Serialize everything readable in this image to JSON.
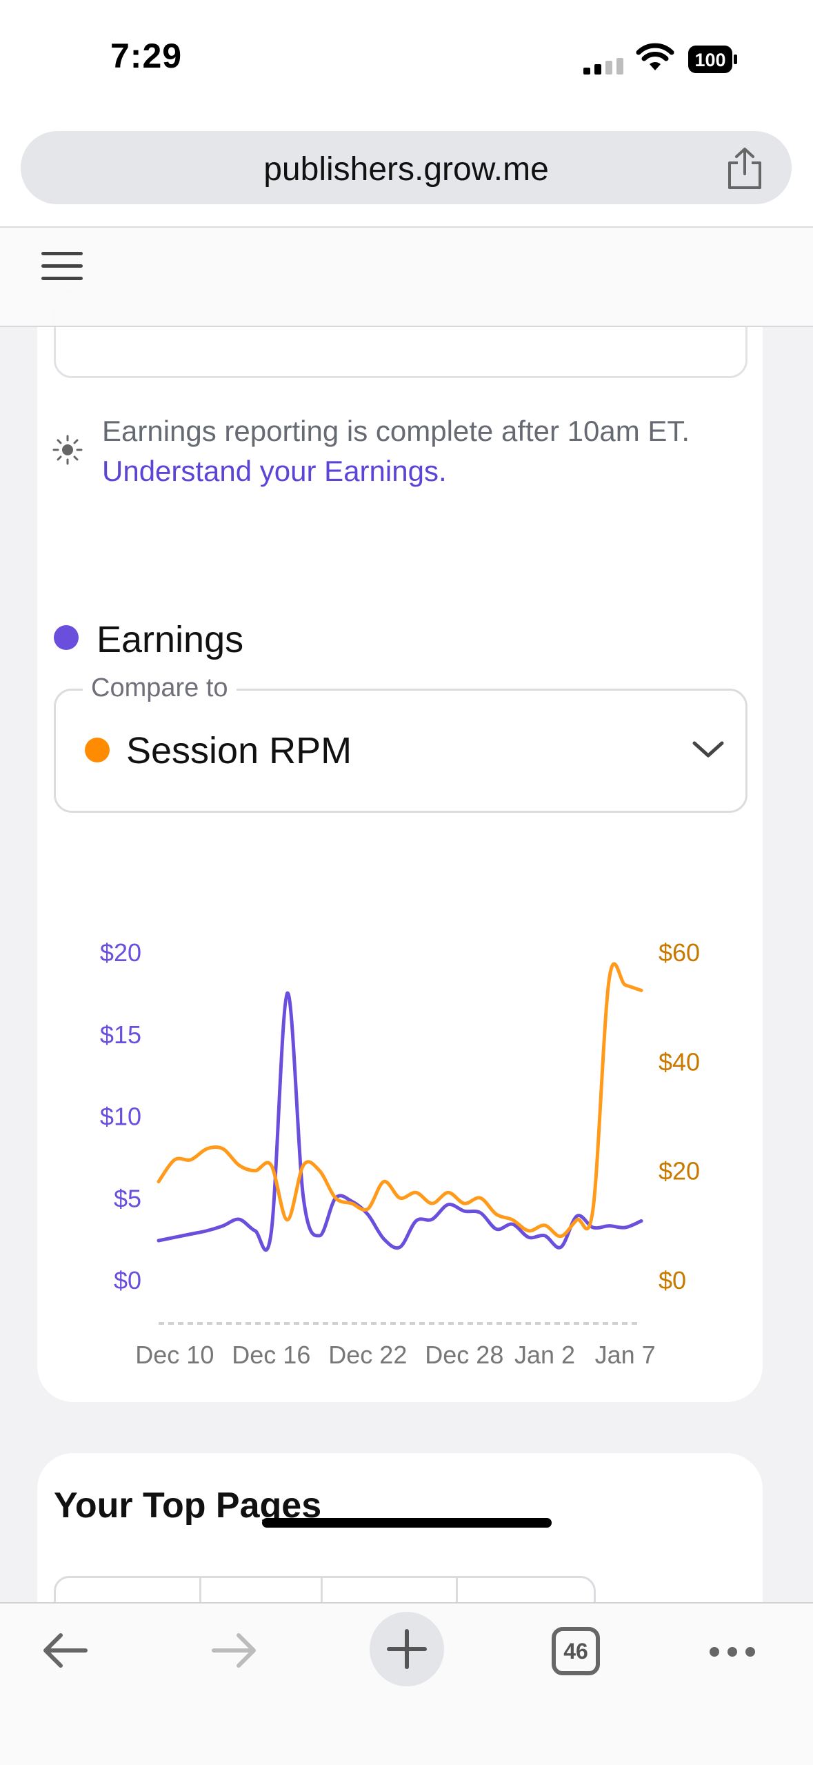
{
  "status": {
    "time": "7:29",
    "battery": "100"
  },
  "browser": {
    "url": "publishers.grow.me",
    "tab_count": "46"
  },
  "notice": {
    "text": "Earnings reporting is complete after 10am ET.",
    "link": "Understand your Earnings."
  },
  "legend": {
    "primary_label": "Earnings",
    "primary_color": "#6a4fdd"
  },
  "compare": {
    "label": "Compare to",
    "value": "Session RPM",
    "color": "#ff8c00"
  },
  "chart_data": {
    "type": "line",
    "x": [
      "Dec 9",
      "Dec 10",
      "Dec 11",
      "Dec 12",
      "Dec 13",
      "Dec 14",
      "Dec 15",
      "Dec 16",
      "Dec 17",
      "Dec 18",
      "Dec 19",
      "Dec 20",
      "Dec 21",
      "Dec 22",
      "Dec 23",
      "Dec 24",
      "Dec 25",
      "Dec 26",
      "Dec 27",
      "Dec 28",
      "Dec 29",
      "Dec 30",
      "Dec 31",
      "Jan 1",
      "Jan 2",
      "Jan 3",
      "Jan 4",
      "Jan 5",
      "Jan 6",
      "Jan 7",
      "Jan 8"
    ],
    "xticks": [
      "Dec 10",
      "Dec 16",
      "Dec 22",
      "Dec 28",
      "Jan 2",
      "Jan 7"
    ],
    "series": [
      {
        "name": "Earnings",
        "axis": "left",
        "color": "#6a4fdd",
        "values": [
          2.4,
          2.6,
          2.8,
          3.0,
          3.3,
          3.7,
          3.0,
          2.9,
          17.5,
          5.0,
          2.7,
          5.0,
          4.8,
          4.0,
          2.5,
          2.0,
          3.6,
          3.7,
          4.6,
          4.2,
          4.1,
          3.1,
          3.4,
          2.6,
          2.7,
          2.0,
          3.9,
          3.2,
          3.3,
          3.2,
          3.6
        ]
      },
      {
        "name": "Session RPM",
        "axis": "right",
        "color": "#ff9a1a",
        "values": [
          18,
          22,
          22,
          24,
          24,
          21,
          20,
          21,
          11,
          21,
          20,
          15,
          14,
          13,
          18,
          15,
          16,
          14,
          16,
          14,
          15,
          12,
          11,
          9,
          10,
          8,
          11,
          13,
          55,
          54,
          53
        ]
      }
    ],
    "yleft": {
      "ticks": [
        "$0",
        "$5",
        "$10",
        "$15",
        "$20"
      ],
      "range": [
        0,
        20
      ]
    },
    "yright": {
      "ticks": [
        "$0",
        "$20",
        "$40",
        "$60"
      ],
      "range": [
        0,
        60
      ]
    }
  },
  "section2": {
    "title": "Your Top Pages"
  }
}
